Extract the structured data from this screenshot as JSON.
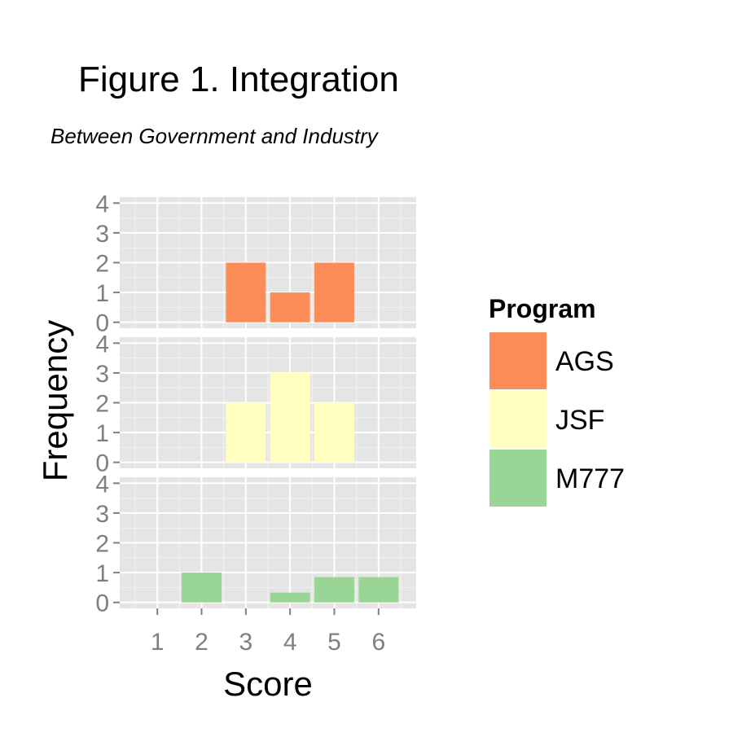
{
  "chart_data": {
    "type": "bar",
    "title": "Figure 1.  Integration",
    "subtitle": "Between Government and Industry",
    "xlabel": "Score",
    "ylabel": "Frequency",
    "x_ticks": [
      1,
      2,
      3,
      4,
      5,
      6
    ],
    "y_ticks": [
      0,
      1,
      2,
      3,
      4
    ],
    "xlim": [
      0.15,
      6.85
    ],
    "ylim": [
      -0.2,
      4.2
    ],
    "grid": true,
    "facets": "stacked vertically, one panel per series",
    "legend": {
      "title": "Program",
      "position": "right"
    },
    "series": [
      {
        "name": "AGS",
        "color": "#fc8d59",
        "x": [
          3,
          4,
          5
        ],
        "values": [
          2,
          1,
          2
        ]
      },
      {
        "name": "JSF",
        "color": "#ffffbf",
        "x": [
          3,
          4,
          5
        ],
        "values": [
          2,
          3,
          2
        ]
      },
      {
        "name": "M777",
        "color": "#99d594",
        "x": [
          2,
          4,
          5,
          6
        ],
        "values": [
          1,
          0.33,
          0.85,
          0.85
        ]
      }
    ]
  }
}
